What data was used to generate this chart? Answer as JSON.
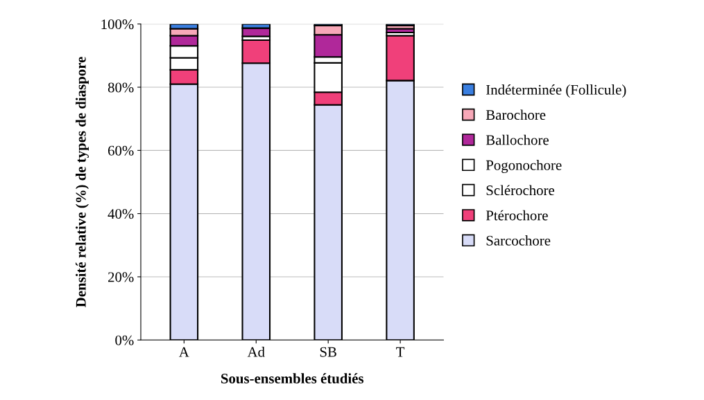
{
  "chart_data": {
    "type": "bar",
    "stacked": true,
    "xlabel": "Sous-ensembles étudiés",
    "ylabel": "Densité relative (%) de types de diaspore",
    "categories": [
      "A",
      "Ad",
      "SB",
      "T"
    ],
    "series": [
      {
        "name": "Sarcochore",
        "color": "#d8dcf8",
        "values": [
          81,
          87.6,
          74.4,
          82.1
        ]
      },
      {
        "name": "Ptérochore",
        "color": "#f0407a",
        "values": [
          4.5,
          7.3,
          4,
          14.2
        ]
      },
      {
        "name": "Sclérochore",
        "color": "#ffffff",
        "values": [
          3.8,
          0,
          9.3,
          0
        ]
      },
      {
        "name": "Pogonochore",
        "color": "#ffffff",
        "values": [
          3.8,
          1.2,
          1.9,
          1
        ]
      },
      {
        "name": "Ballochore",
        "color": "#b0289a",
        "values": [
          3.2,
          2.6,
          7,
          1.2
        ]
      },
      {
        "name": "Barochore",
        "color": "#f7a8b8",
        "values": [
          2.2,
          0,
          2.9,
          1
        ]
      },
      {
        "name": "Indéterminée (Follicule)",
        "color": "#3a7fe0",
        "values": [
          1.5,
          1.3,
          0.5,
          0.5
        ]
      }
    ],
    "ylim": [
      0,
      100
    ],
    "yticks": [
      {
        "value": 0,
        "label": "0%"
      },
      {
        "value": 20,
        "label": "20%"
      },
      {
        "value": 40,
        "label": "40%"
      },
      {
        "value": 60,
        "label": "60%"
      },
      {
        "value": 80,
        "label": "80%"
      },
      {
        "value": 100,
        "label": "100%"
      }
    ],
    "grid": "y",
    "legend": "right"
  }
}
